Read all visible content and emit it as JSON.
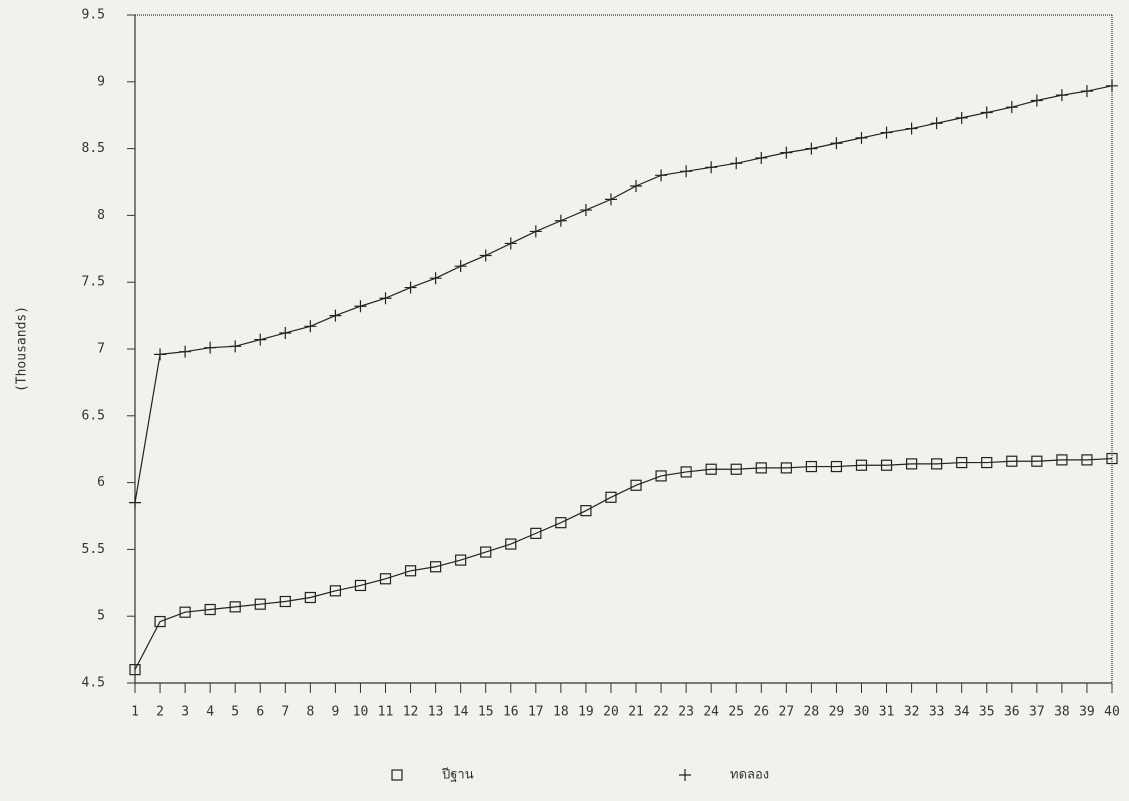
{
  "chart_data": {
    "type": "line",
    "y_label": "(Thousands)",
    "x": [
      1,
      2,
      3,
      4,
      5,
      6,
      7,
      8,
      9,
      10,
      11,
      12,
      13,
      14,
      15,
      16,
      17,
      18,
      19,
      20,
      21,
      22,
      23,
      24,
      25,
      26,
      27,
      28,
      29,
      30,
      31,
      32,
      33,
      34,
      35,
      36,
      37,
      38,
      39,
      40
    ],
    "xlim": [
      1,
      40
    ],
    "xticks": [
      1,
      2,
      3,
      4,
      5,
      6,
      7,
      8,
      9,
      10,
      11,
      12,
      13,
      14,
      15,
      16,
      17,
      18,
      19,
      20,
      21,
      22,
      23,
      24,
      25,
      26,
      27,
      28,
      29,
      30,
      31,
      32,
      33,
      34,
      35,
      36,
      37,
      38,
      39,
      40
    ],
    "ylim": [
      4.5,
      9.5
    ],
    "yticks": [
      4.5,
      5,
      5.5,
      6,
      6.5,
      7,
      7.5,
      8,
      8.5,
      9,
      9.5
    ],
    "series": [
      {
        "name": "ปีฐาน",
        "color": "#222222",
        "marker": "square",
        "values": [
          4.6,
          4.96,
          5.03,
          5.05,
          5.07,
          5.09,
          5.11,
          5.14,
          5.19,
          5.23,
          5.28,
          5.34,
          5.37,
          5.42,
          5.48,
          5.54,
          5.62,
          5.7,
          5.79,
          5.89,
          5.98,
          6.05,
          6.08,
          6.1,
          6.1,
          6.11,
          6.11,
          6.12,
          6.12,
          6.13,
          6.13,
          6.14,
          6.14,
          6.15,
          6.15,
          6.16,
          6.16,
          6.17,
          6.17,
          6.18
        ]
      },
      {
        "name": "ทดลอง",
        "color": "#222222",
        "marker": "plus",
        "values": [
          5.85,
          6.96,
          6.98,
          7.01,
          7.02,
          7.07,
          7.12,
          7.17,
          7.25,
          7.32,
          7.38,
          7.46,
          7.53,
          7.62,
          7.7,
          7.79,
          7.88,
          7.96,
          8.04,
          8.12,
          8.22,
          8.3,
          8.33,
          8.36,
          8.39,
          8.43,
          8.47,
          8.5,
          8.54,
          8.58,
          8.62,
          8.65,
          8.69,
          8.73,
          8.77,
          8.81,
          8.86,
          8.9,
          8.93,
          8.97
        ]
      }
    ]
  }
}
